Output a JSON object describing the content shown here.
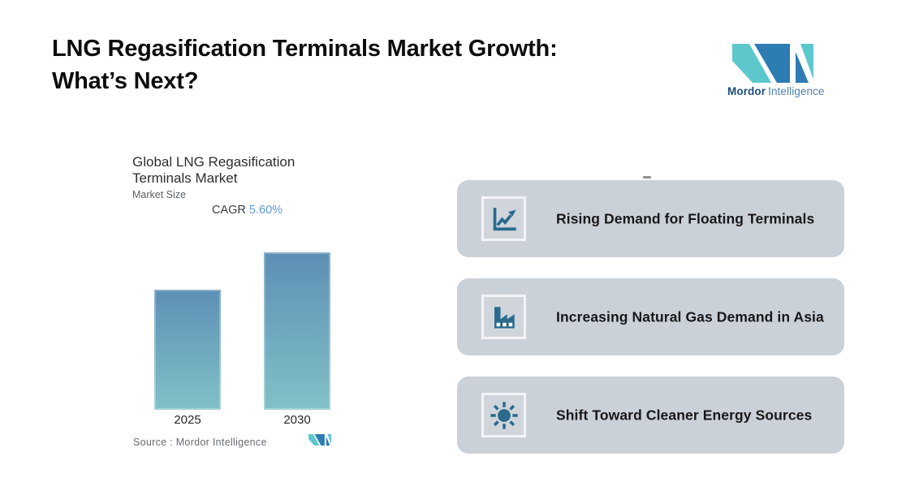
{
  "header": {
    "title_line1": "LNG Regasification Terminals Market Growth:",
    "title_line2": "What’s Next?"
  },
  "logo": {
    "word1": "Mordor",
    "word2": "Intelligence"
  },
  "chart_data": {
    "type": "bar",
    "title": "Global LNG Regasification Terminals Market",
    "subtitle": "Market Size",
    "cagr_label": "CAGR",
    "cagr_value": "5.60%",
    "categories": [
      "2025",
      "2030"
    ],
    "values": [
      1.0,
      1.31
    ],
    "ylim": [
      0,
      1.4
    ],
    "xlabel": "",
    "ylabel": "",
    "grid": false,
    "legend": false,
    "source": "Source :  Mordor Intelligence"
  },
  "cards": [
    {
      "icon": "line-chart-icon",
      "label": "Rising Demand for Floating Terminals"
    },
    {
      "icon": "factory-icon",
      "label": "Increasing Natural Gas Demand in Asia"
    },
    {
      "icon": "sun-icon",
      "label": "Shift Toward Cleaner Energy Sources"
    }
  ],
  "colors": {
    "background": "#ffffff",
    "title_text": "#0d0d0d",
    "brand_teal": "#5cc8cc",
    "brand_blue": "#2d7cb4",
    "logo_name_dark": "#1b4d78",
    "logo_name_light": "#4d81ae",
    "bar_top": "#5d8fb5",
    "bar_bottom": "#81c1c7",
    "cagr_value_color": "#5b9bd5",
    "card_bg": "#cbd1d8",
    "card_text": "#18181a",
    "icon_color": "#2a6b8d"
  }
}
